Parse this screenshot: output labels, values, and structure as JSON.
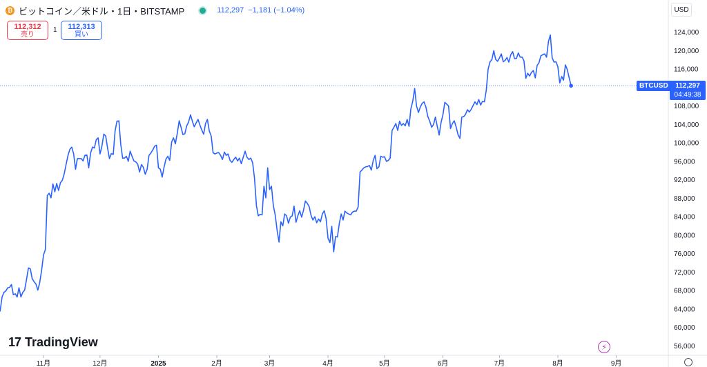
{
  "header": {
    "coin_icon_glyph": "₿",
    "title": "ビットコイン／米ドル・1日・BITSTAMP",
    "last_price": "112,297",
    "change": "−1,181 (−1.04%)"
  },
  "trade": {
    "sell_price": "112,312",
    "sell_label": "売り",
    "spread": "1",
    "buy_price": "112,313",
    "buy_label": "買い"
  },
  "currency": "USD",
  "price_tag": {
    "symbol": "BTCUSD",
    "price": "112,297",
    "countdown": "04:49:38"
  },
  "brand": {
    "mark": "17",
    "name": "TradingView"
  },
  "colors": {
    "line": "#2962ff",
    "grid": "#f0f3fa",
    "axis_text": "#131722",
    "positive": "#22ab94",
    "negative": "#f23645"
  },
  "icons": [
    "bitcoin-icon",
    "status-dot-icon",
    "lightning-icon",
    "settings-icon"
  ],
  "chart_data": {
    "type": "line",
    "series": [
      {
        "values": [
          60500,
          63000,
          63500,
          66500,
          67500,
          67800,
          68500,
          68600,
          69200,
          67000,
          67200,
          66500,
          68500,
          66500,
          67500,
          68000,
          70300,
          72800,
          72600,
          70500,
          69800,
          69300,
          68000,
          69600,
          72300,
          75600,
          76800,
          88500,
          89000,
          88000,
          91000,
          89300,
          91100,
          89600,
          91300,
          91800,
          93200,
          95200,
          97200,
          98500,
          99000,
          97500,
          94200,
          96500,
          96500,
          96500,
          96000,
          97200,
          97300,
          94500,
          97700,
          99000,
          98800,
          100600,
          101000,
          97500,
          99200,
          101800,
          101400,
          98800,
          96500,
          97600,
          97400,
          102500,
          104600,
          104700,
          99600,
          96600,
          96600,
          97000,
          95900,
          98100,
          97000,
          96000,
          95800,
          95300,
          93600,
          95200,
          94600,
          93100,
          94200,
          97200,
          97700,
          98400,
          99200,
          99400,
          94500,
          94200,
          92500,
          94700,
          96400,
          97000,
          96100,
          100100,
          101000,
          99700,
          102000,
          104700,
          103300,
          101700,
          101900,
          103600,
          104400,
          106000,
          104600,
          103400,
          104200,
          105000,
          103800,
          102700,
          101800,
          104100,
          105000,
          102500,
          101400,
          97800,
          97500,
          97700,
          97800,
          97200,
          96300,
          97900,
          97200,
          97500,
          96100,
          95700,
          96300,
          96800,
          96000,
          96600,
          95400,
          96800,
          98100,
          96800,
          96300,
          96600,
          95600,
          92300,
          86300,
          84100,
          84400,
          84300,
          90500,
          88000,
          94500,
          89800,
          90500,
          86300,
          84200,
          80900,
          78400,
          82800,
          81900,
          84500,
          84100,
          82500,
          83800,
          84100,
          86200,
          82700,
          84100,
          85200,
          83800,
          85300,
          87300,
          86800,
          86100,
          84200,
          83200,
          83900,
          82600,
          83400,
          82800,
          84500,
          85200,
          83500,
          79200,
          78300,
          81800,
          76300,
          79600,
          79500,
          82400,
          84500,
          83200,
          85100,
          84700,
          84500,
          84300,
          84900,
          85100,
          85100,
          86000,
          93600,
          94000,
          94500,
          94700,
          94800,
          95000,
          94000,
          96100,
          97200,
          94300,
          94700,
          97000,
          96800,
          96900,
          95900,
          96100,
          96600,
          102600,
          103300,
          104100,
          102600,
          104600,
          103700,
          104100,
          103600,
          105000,
          103500,
          107300,
          109000,
          111700,
          107900,
          106500,
          107700,
          108500,
          108800,
          107600,
          105600,
          104600,
          103300,
          103900,
          105500,
          103500,
          101600,
          104300,
          106000,
          108700,
          108300,
          107900,
          103000,
          104100,
          104700,
          103400,
          101700,
          100900,
          105500,
          105600,
          106100,
          107100,
          106600,
          107200,
          108000,
          108800,
          108200,
          109300,
          108100,
          108900,
          108800,
          111300,
          115900,
          117500,
          118000,
          119900,
          118000,
          117600,
          118300,
          119200,
          117500,
          117800,
          118400,
          117400,
          119000,
          119700,
          118200,
          118200,
          119400,
          118500,
          118500,
          117700,
          113900,
          115000,
          114400,
          115200,
          115600,
          114000,
          116700,
          117300,
          118800,
          119000,
          119200,
          118500,
          121900,
          123300,
          118300,
          117400,
          117500,
          116400,
          112900,
          114300,
          113500,
          116800,
          115800,
          114000,
          112297
        ],
        "start_date": "2024-10-07",
        "interval": "1d"
      }
    ],
    "title": "ビットコイン／米ドル・1日・BITSTAMP",
    "xlabel": "",
    "ylabel": "",
    "ylim": [
      54000,
      126000
    ],
    "xlim": [
      "2024-10-06",
      "2025-09-10"
    ],
    "y_ticks": [
      56000,
      60000,
      64000,
      68000,
      72000,
      76000,
      80000,
      84000,
      88000,
      92000,
      96000,
      100000,
      104000,
      108000,
      116000,
      120000,
      124000
    ],
    "y_tick_labels": [
      "56,000",
      "60,000",
      "64,000",
      "68,000",
      "72,000",
      "76,000",
      "80,000",
      "84,000",
      "88,000",
      "92,000",
      "96,000",
      "100,000",
      "104,000",
      "108,000",
      "116,000",
      "120,000",
      "124,000"
    ],
    "x_ticks": [
      "2024-11-01",
      "2024-12-01",
      "2025-01-01",
      "2025-02-01",
      "2025-03-01",
      "2025-04-01",
      "2025-05-01",
      "2025-06-01",
      "2025-07-01",
      "2025-08-01",
      "2025-09-01"
    ],
    "x_tick_labels": [
      "11月",
      "12月",
      "2025",
      "2月",
      "3月",
      "4月",
      "5月",
      "6月",
      "7月",
      "8月",
      "9月"
    ],
    "last_value_line": 112297,
    "grid": false
  }
}
